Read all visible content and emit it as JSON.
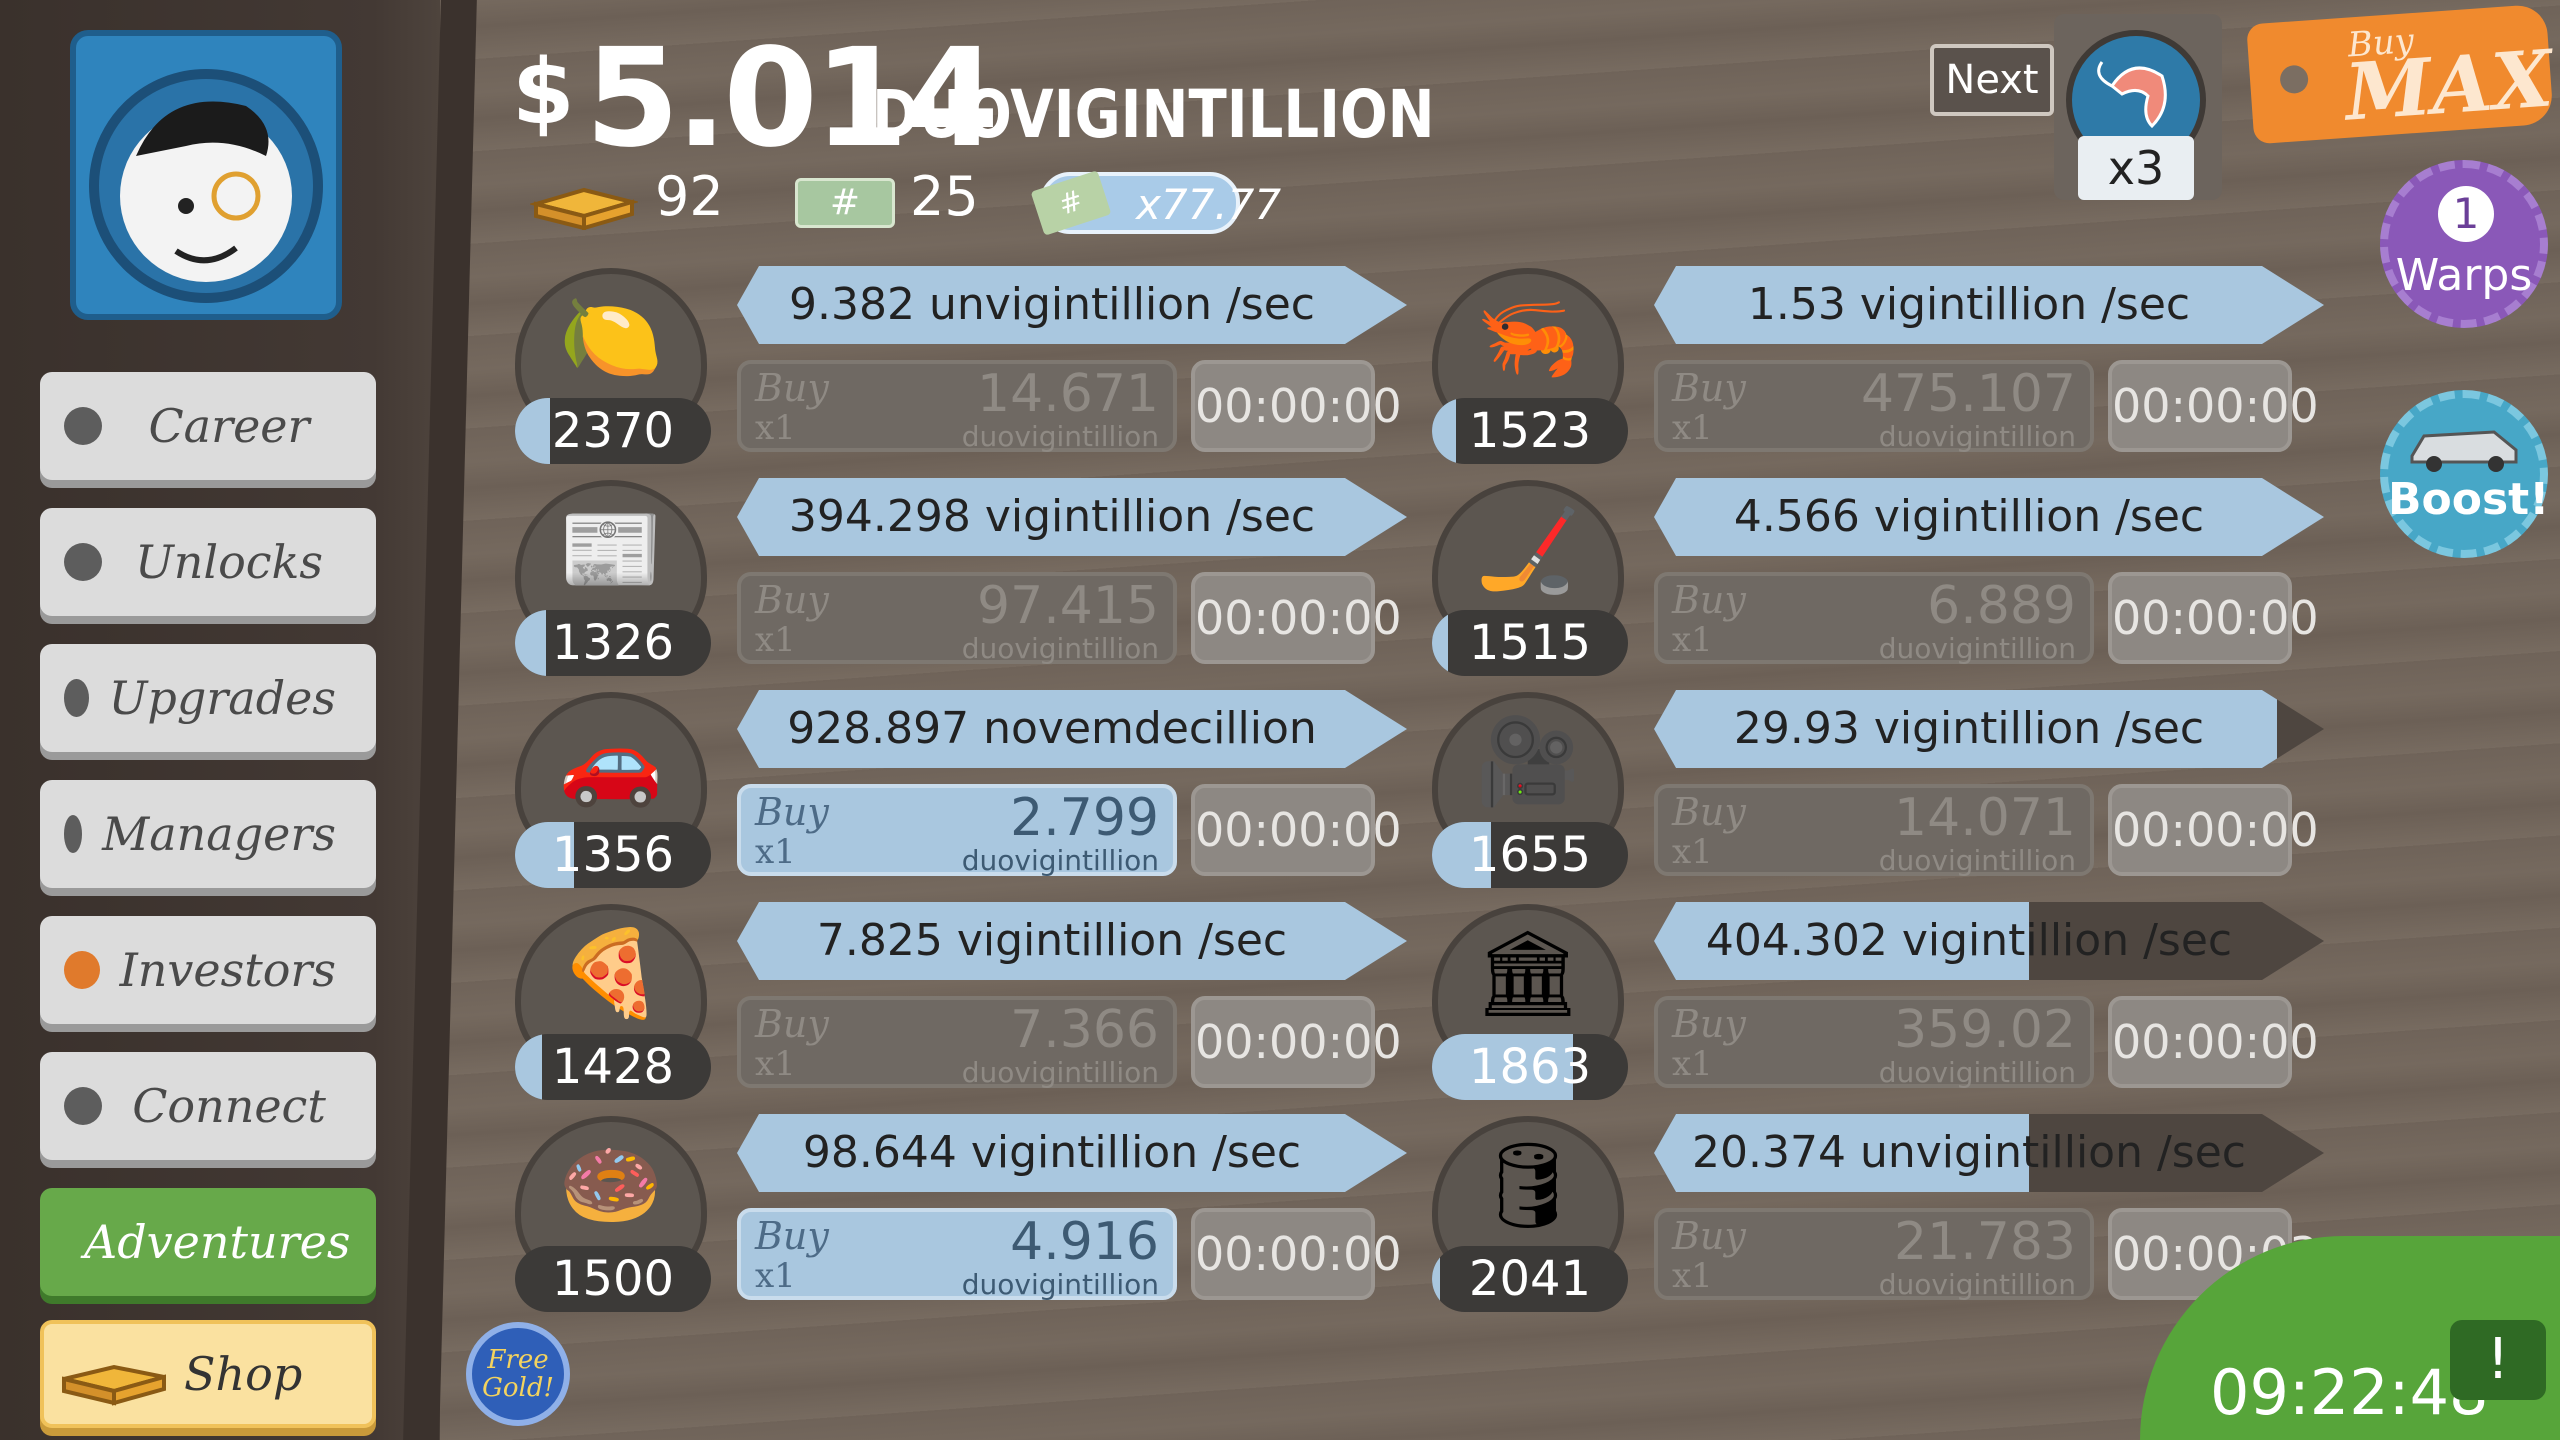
{
  "cash": {
    "currency_symbol": "$",
    "amount": "5.014",
    "unit": "DUOVIGINTILLION"
  },
  "resources": {
    "gold": "92",
    "megabucks": "25",
    "angel_multiplier": "x77.77"
  },
  "sidebar": {
    "items": [
      {
        "label": "Career"
      },
      {
        "label": "Unlocks"
      },
      {
        "label": "Upgrades"
      },
      {
        "label": "Managers"
      },
      {
        "label": "Investors"
      },
      {
        "label": "Connect"
      },
      {
        "label": "Adventures"
      },
      {
        "label": "Shop"
      }
    ]
  },
  "next": {
    "label": "Next",
    "multiplier": "x3",
    "icon": "shrimp-icon"
  },
  "buy_max": {
    "buy": "Buy",
    "max": "MAX"
  },
  "warps": {
    "count": "1",
    "label": "Warps"
  },
  "boost": {
    "label": "Boost!"
  },
  "free_gold": {
    "line1": "Free",
    "line2": "Gold!"
  },
  "tv": {
    "time": "09:22:48",
    "icon": "!"
  },
  "businesses": [
    {
      "icon": "lemon-icon",
      "count": "2370",
      "rate": "9.382 unvigintillion /sec",
      "buy": "Buy",
      "qty": "x1",
      "price": "14.671",
      "unit": "duovigintillion",
      "timer": "00:00:00",
      "level_progress": 0.18,
      "cycle_progress": 1.0,
      "affordable": false
    },
    {
      "icon": "shrimp-icon",
      "count": "1523",
      "rate": "1.53 vigintillion /sec",
      "buy": "Buy",
      "qty": "x1",
      "price": "475.107",
      "unit": "duovigintillion",
      "timer": "00:00:00",
      "level_progress": 0.12,
      "cycle_progress": 1.0,
      "affordable": false
    },
    {
      "icon": "newspaper-icon",
      "count": "1326",
      "rate": "394.298 vigintillion /sec",
      "buy": "Buy",
      "qty": "x1",
      "price": "97.415",
      "unit": "duovigintillion",
      "timer": "00:00:00",
      "level_progress": 0.16,
      "cycle_progress": 1.0,
      "affordable": false
    },
    {
      "icon": "hockey-icon",
      "count": "1515",
      "rate": "4.566 vigintillion /sec",
      "buy": "Buy",
      "qty": "x1",
      "price": "6.889",
      "unit": "duovigintillion",
      "timer": "00:00:00",
      "level_progress": 0.08,
      "cycle_progress": 1.0,
      "affordable": false
    },
    {
      "icon": "car-wash-icon",
      "count": "1356",
      "rate": "928.897 novemdecillion /sec",
      "buy": "Buy",
      "qty": "x1",
      "price": "2.799",
      "unit": "duovigintillion",
      "timer": "00:00:00",
      "level_progress": 0.3,
      "cycle_progress": 1.0,
      "affordable": true
    },
    {
      "icon": "movie-camera-icon",
      "count": "1655",
      "rate": "29.93 vigintillion /sec",
      "buy": "Buy",
      "qty": "x1",
      "price": "14.071",
      "unit": "duovigintillion",
      "timer": "00:00:00",
      "level_progress": 0.3,
      "cycle_progress": 0.93,
      "affordable": false
    },
    {
      "icon": "pizza-icon",
      "count": "1428",
      "rate": "7.825 vigintillion /sec",
      "buy": "Buy",
      "qty": "x1",
      "price": "7.366",
      "unit": "duovigintillion",
      "timer": "00:00:00",
      "level_progress": 0.14,
      "cycle_progress": 1.0,
      "affordable": false
    },
    {
      "icon": "bank-icon",
      "count": "1863",
      "rate": "404.302 vigintillion /sec",
      "buy": "Buy",
      "qty": "x1",
      "price": "359.02",
      "unit": "duovigintillion",
      "timer": "00:00:00",
      "level_progress": 0.72,
      "cycle_progress": 0.56,
      "affordable": false
    },
    {
      "icon": "donut-icon",
      "count": "1500",
      "rate": "98.644 vigintillion /sec",
      "buy": "Buy",
      "qty": "x1",
      "price": "4.916",
      "unit": "duovigintillion",
      "timer": "00:00:00",
      "level_progress": 0.0,
      "cycle_progress": 1.0,
      "affordable": true
    },
    {
      "icon": "oil-rig-icon",
      "count": "2041",
      "rate": "20.374 unvigintillion /sec",
      "buy": "Buy",
      "qty": "x1",
      "price": "21.783",
      "unit": "duovigintillion",
      "timer": "00:00:03",
      "level_progress": 0.04,
      "cycle_progress": 0.56,
      "affordable": false
    }
  ]
}
